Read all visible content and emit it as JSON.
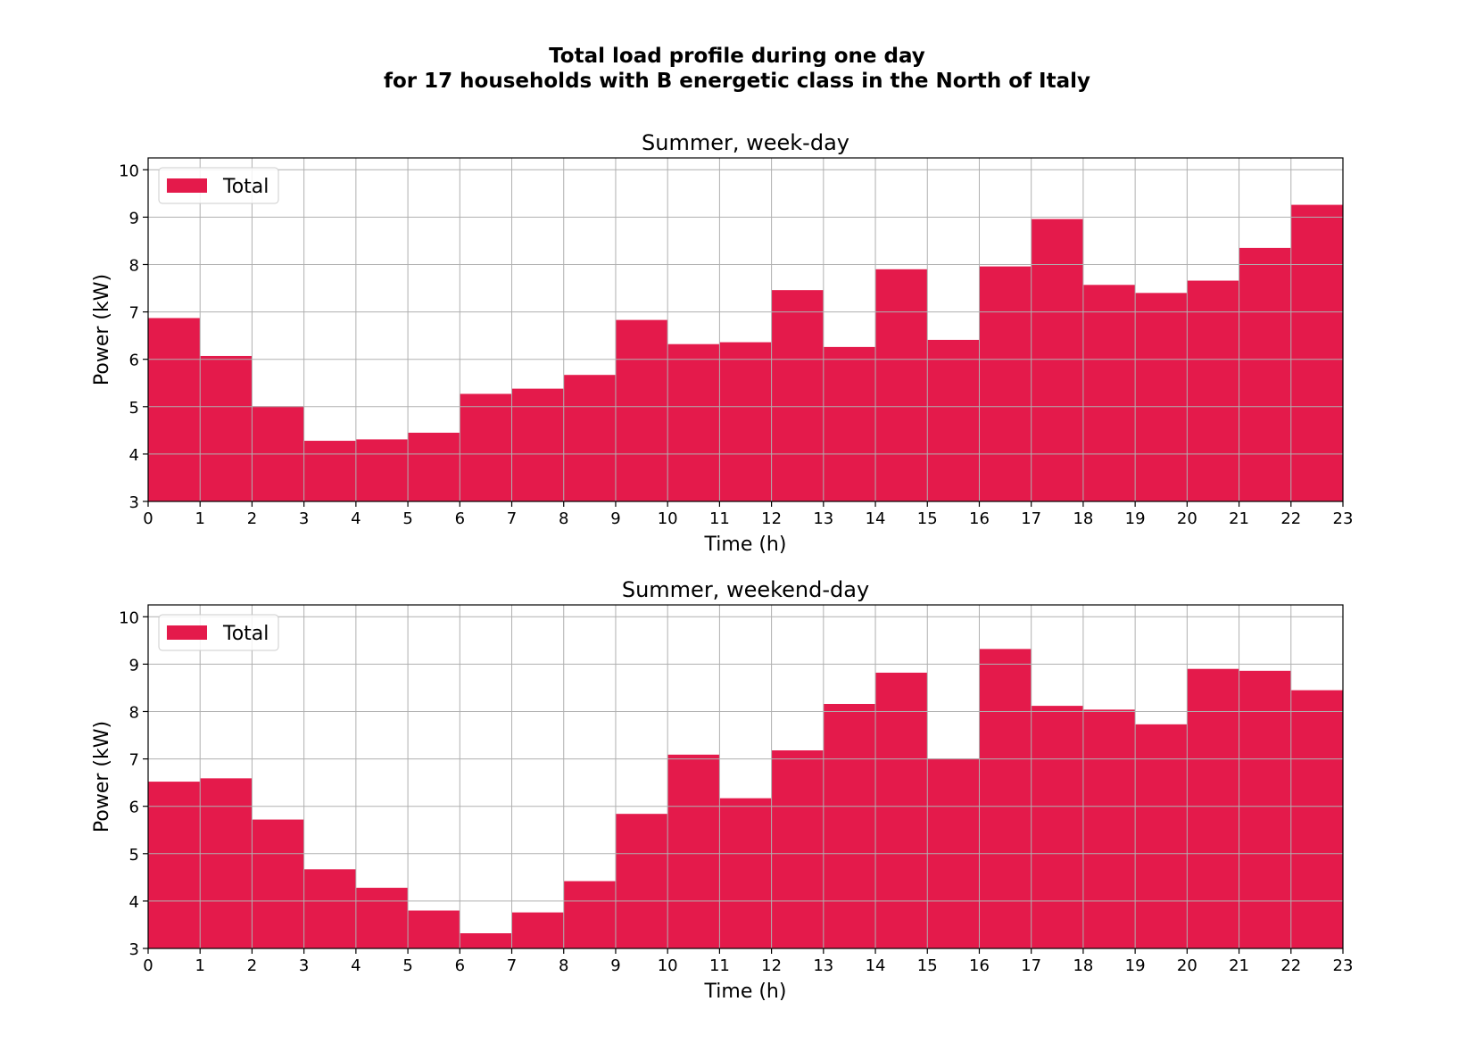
{
  "suptitle": [
    "Total load profile during one day",
    "for 17 households with B energetic class in the North of Italy"
  ],
  "colors": {
    "bar": "#e41a4b",
    "grid": "#b0b0b0",
    "axis": "#000000"
  },
  "chart_data": [
    {
      "type": "bar",
      "title": "Summer, week-day",
      "xlabel": "Time (h)",
      "ylabel": "Power (kW)",
      "xlim": [
        0,
        23
      ],
      "ylim": [
        3,
        10.25
      ],
      "xticks": [
        0,
        1,
        2,
        3,
        4,
        5,
        6,
        7,
        8,
        9,
        10,
        11,
        12,
        13,
        14,
        15,
        16,
        17,
        18,
        19,
        20,
        21,
        22,
        23
      ],
      "yticks": [
        3,
        4,
        5,
        6,
        7,
        8,
        9,
        10
      ],
      "grid": true,
      "legend": {
        "placement": "top-left",
        "entries": [
          "Total"
        ]
      },
      "series": [
        {
          "name": "Total",
          "x_start": [
            0,
            1,
            2,
            3,
            4,
            5,
            6,
            7,
            8,
            9,
            10,
            11,
            12,
            13,
            14,
            15,
            16,
            17,
            18,
            19,
            20,
            21,
            22
          ],
          "values": [
            6.87,
            6.07,
            5.01,
            4.28,
            4.31,
            4.45,
            5.27,
            5.38,
            5.67,
            6.83,
            6.32,
            6.36,
            7.46,
            6.26,
            7.9,
            6.41,
            7.96,
            8.96,
            7.57,
            7.4,
            7.66,
            8.35,
            9.26
          ]
        }
      ]
    },
    {
      "type": "bar",
      "title": "Summer, weekend-day",
      "xlabel": "Time (h)",
      "ylabel": "Power (kW)",
      "xlim": [
        0,
        23
      ],
      "ylim": [
        3,
        10.25
      ],
      "xticks": [
        0,
        1,
        2,
        3,
        4,
        5,
        6,
        7,
        8,
        9,
        10,
        11,
        12,
        13,
        14,
        15,
        16,
        17,
        18,
        19,
        20,
        21,
        22,
        23
      ],
      "yticks": [
        3,
        4,
        5,
        6,
        7,
        8,
        9,
        10
      ],
      "grid": true,
      "legend": {
        "placement": "top-left",
        "entries": [
          "Total"
        ]
      },
      "series": [
        {
          "name": "Total",
          "x_start": [
            0,
            1,
            2,
            3,
            4,
            5,
            6,
            7,
            8,
            9,
            10,
            11,
            12,
            13,
            14,
            15,
            16,
            17,
            18,
            19,
            20,
            21,
            22
          ],
          "values": [
            6.52,
            6.59,
            5.72,
            4.67,
            4.28,
            3.8,
            3.32,
            3.76,
            4.42,
            5.84,
            7.09,
            6.17,
            7.18,
            8.16,
            8.82,
            7.01,
            9.32,
            8.12,
            8.04,
            7.73,
            8.9,
            8.86,
            8.45
          ]
        }
      ]
    }
  ]
}
